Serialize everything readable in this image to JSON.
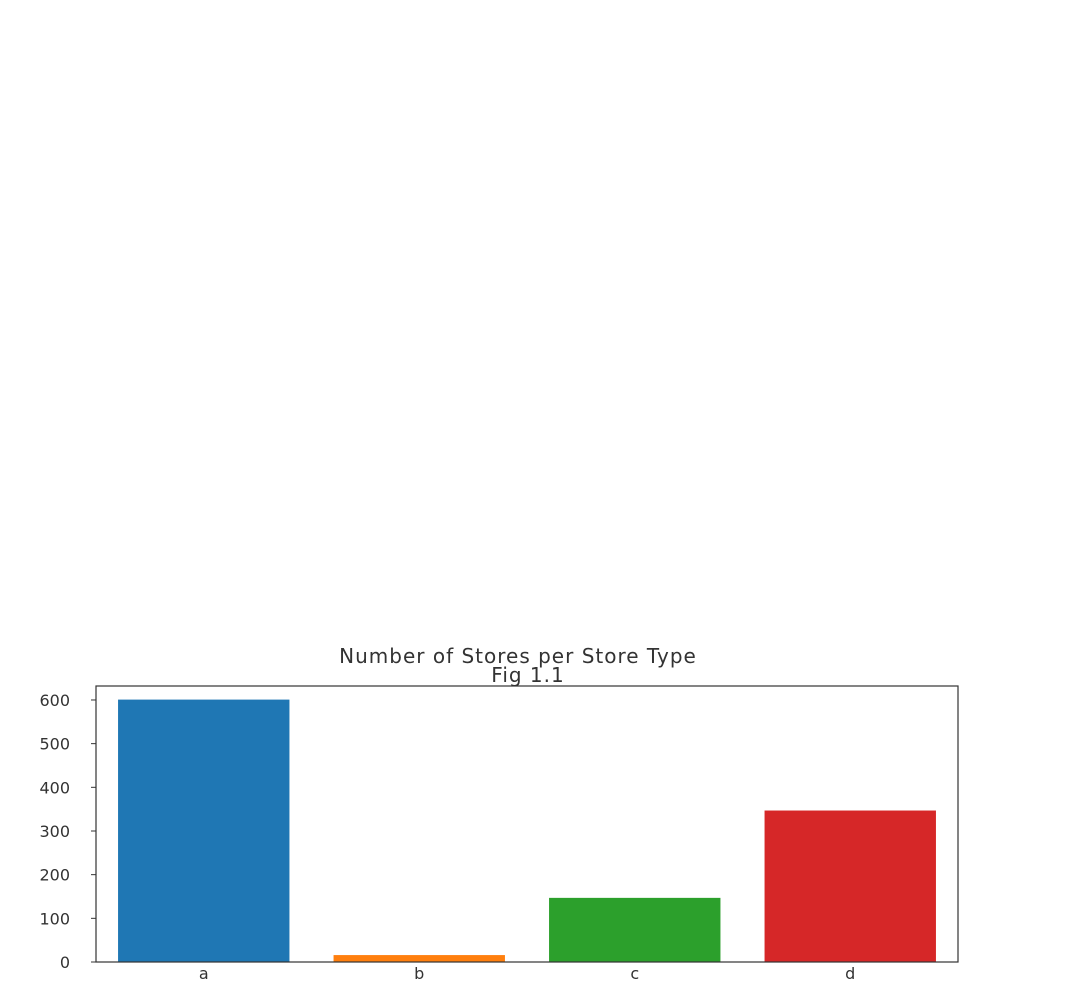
{
  "chart_data": {
    "type": "bar",
    "title": "Number of Stores per Store Type",
    "subtitle": "Fig 1.1",
    "xlabel": "",
    "ylabel": "",
    "categories": [
      "a",
      "b",
      "c",
      "d"
    ],
    "values": [
      602,
      17,
      148,
      348
    ],
    "colors": [
      "#1f77b4",
      "#ff7f0e",
      "#2ca02c",
      "#d62728"
    ],
    "ylim": [
      0,
      632
    ],
    "yticks": [
      0,
      100,
      200,
      300,
      400,
      500,
      600
    ],
    "ytick_labels": [
      "0",
      "100",
      "200",
      "300",
      "400",
      "500",
      "600"
    ],
    "grid": false,
    "legend": "none"
  }
}
